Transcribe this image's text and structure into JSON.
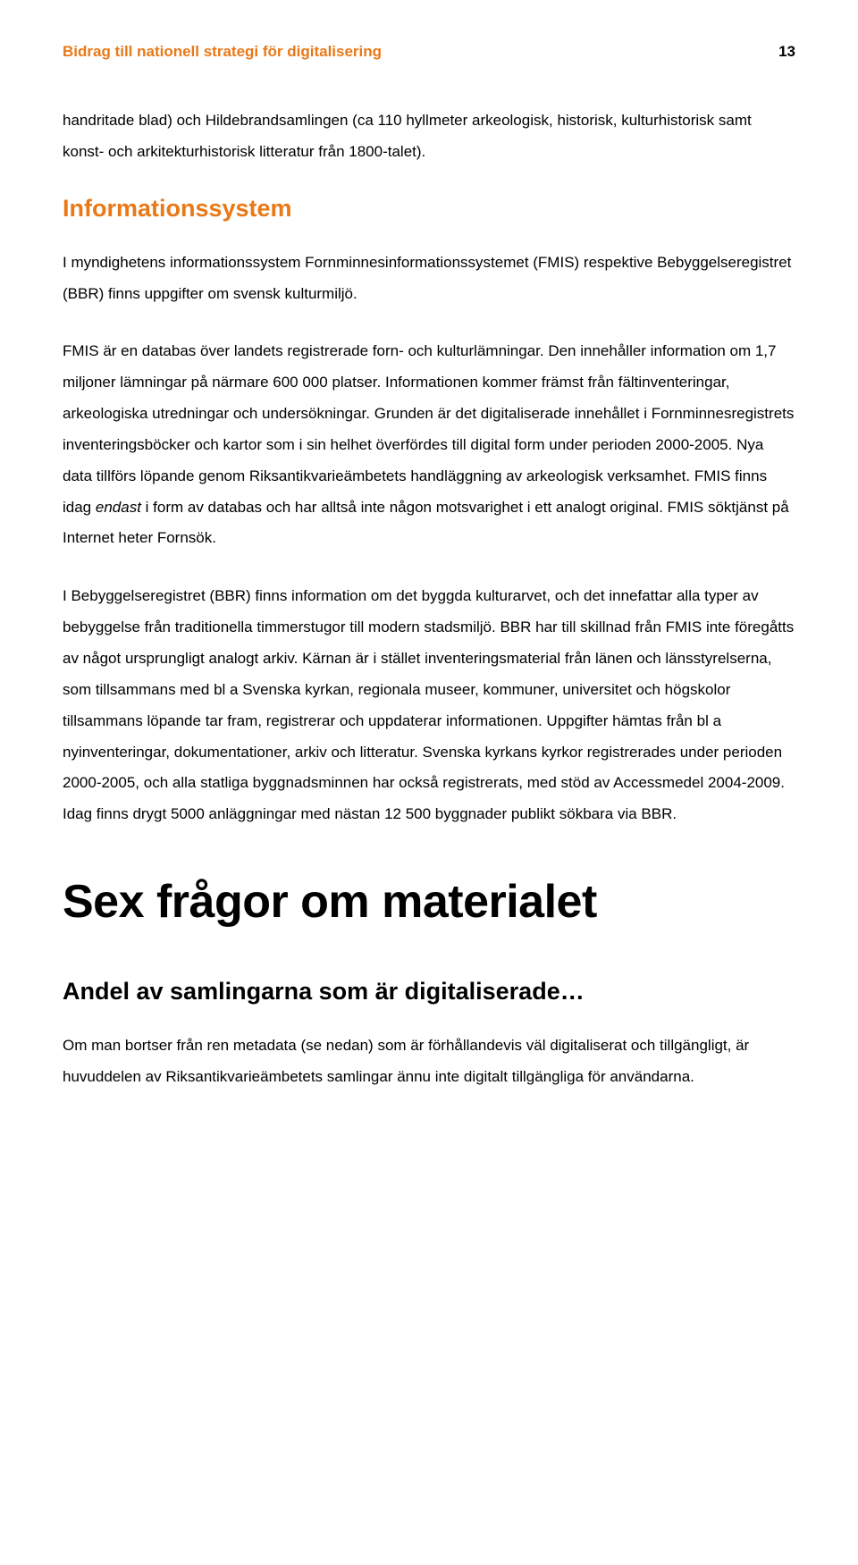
{
  "header": {
    "running_title": "Bidrag till nationell strategi för digitalisering",
    "page_number": "13"
  },
  "p_lead": "handritade blad) och Hildebrandsamlingen (ca 110 hyllmeter arkeologisk, historisk, kulturhistorisk samt konst- och arkitekturhistorisk litteratur från 1800-talet).",
  "h2_info": "Informationssystem",
  "p_info1": "I myndighetens informationssystem Fornminnesinformationssystemet (FMIS) respektive Bebyggelseregistret (BBR) finns uppgifter om svensk kulturmiljö.",
  "p_info2_a": "FMIS är en databas över landets registrerade forn- och kulturlämningar. Den innehåller information om 1,7 miljoner lämningar på närmare 600 000 platser. Informationen kommer främst från fältinventeringar, arkeologiska utredningar och undersökningar. Grunden är det digitaliserade innehållet i Fornminnesregistrets inventeringsböcker och kartor som i sin helhet överfördes till digital form under perioden 2000-2005. Nya data tillförs löpande genom Riksantikvarieämbetets handläggning av arkeologisk verksamhet. FMIS finns idag ",
  "p_info2_italic": "endast",
  "p_info2_b": " i form av databas och har alltså inte någon motsvarighet i ett analogt original. FMIS söktjänst på Internet heter Fornsök.",
  "p_info3": "I Bebyggelseregistret (BBR) finns information om det byggda kulturarvet, och det innefattar alla typer av bebyggelse från traditionella timmerstugor till modern stadsmiljö. BBR har till skillnad från FMIS inte föregåtts av något ursprungligt analogt arkiv. Kärnan är i stället inventeringsmaterial från länen och länsstyrelserna, som tillsammans med bl a Svenska kyrkan, regionala museer, kommuner, universitet och högskolor tillsammans löpande tar fram, registrerar och uppdaterar informationen. Uppgifter hämtas från bl a nyinventeringar, dokumentationer, arkiv och litteratur. Svenska kyrkans kyrkor registrerades under perioden 2000-2005, och alla statliga byggnadsminnen har också registrerats, med stöd av Accessmedel 2004-2009. Idag finns drygt 5000 anläggningar med nästan 12 500 byggnader publikt sökbara via BBR.",
  "h1_six": "Sex frågor om materialet",
  "h3_andel": "Andel av samlingarna som är digitaliserade…",
  "p_andel": "Om man bortser från ren metadata (se nedan) som är förhållandevis väl digitaliserat och tillgängligt, är huvuddelen av Riksantikvarieämbetets samlingar ännu inte digitalt tillgängliga för användarna."
}
